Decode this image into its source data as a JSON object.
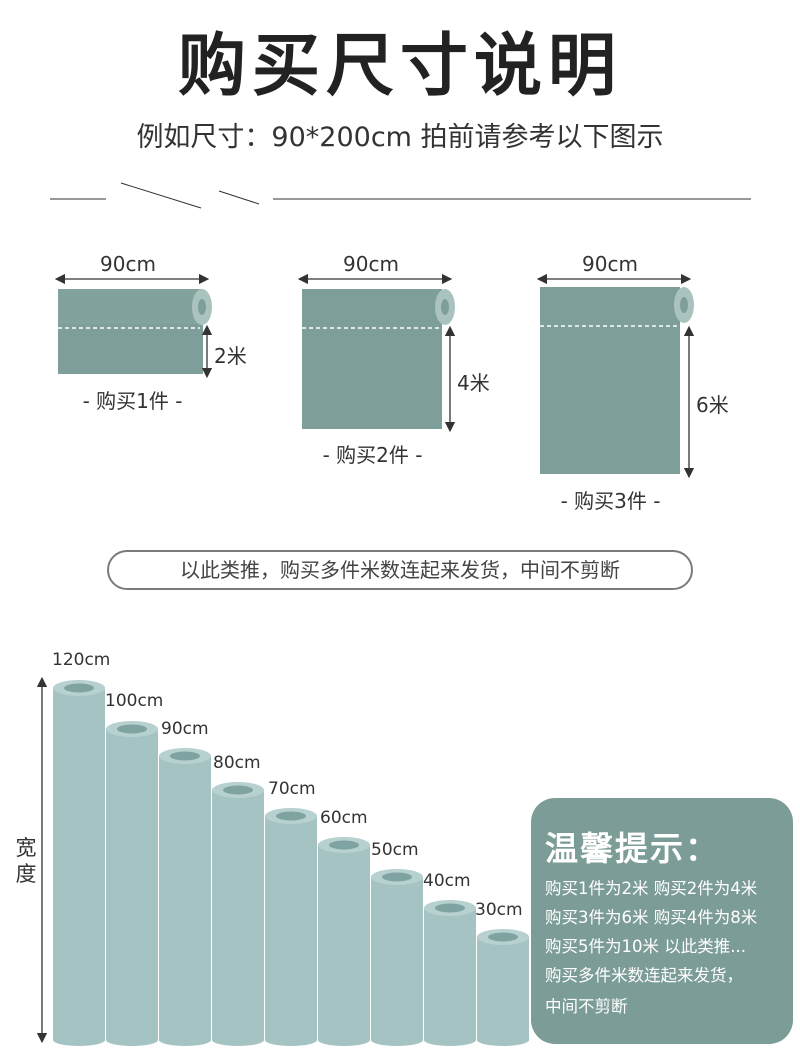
{
  "header": {
    "title": "购买尺寸说明",
    "subtitle": "例如尺寸：90*200cm 拍前请参考以下图示"
  },
  "examples": [
    {
      "width_label": "90cm",
      "length_label": "2米",
      "caption": "- 购买1件 -"
    },
    {
      "width_label": "90cm",
      "length_label": "4米",
      "caption": "- 购买2件 -"
    },
    {
      "width_label": "90cm",
      "length_label": "6米",
      "caption": "- 购买3件 -"
    }
  ],
  "note": "以此类推，购买多件米数连起来发货，中间不剪断",
  "width_axis_label": "宽度",
  "rolls": [
    "120cm",
    "100cm",
    "90cm",
    "80cm",
    "70cm",
    "60cm",
    "50cm",
    "40cm",
    "30cm"
  ],
  "tip": {
    "title": "温馨提示：",
    "lines": [
      "购买1件为2米 购买2件为4米",
      "购买3件为6米 购买4件为8米",
      "购买5件为10米 以此类推...",
      "购买多件米数连起来发货，",
      "中间不剪断"
    ]
  },
  "colors": {
    "fabric": "#7e9e9a",
    "fabric_end": "#aac3bf",
    "roll_body": "#a6c3c3",
    "roll_top": "#b7d0d0",
    "roll_hole": "#7fa3a1",
    "tip_bg": "#7c9c98"
  }
}
